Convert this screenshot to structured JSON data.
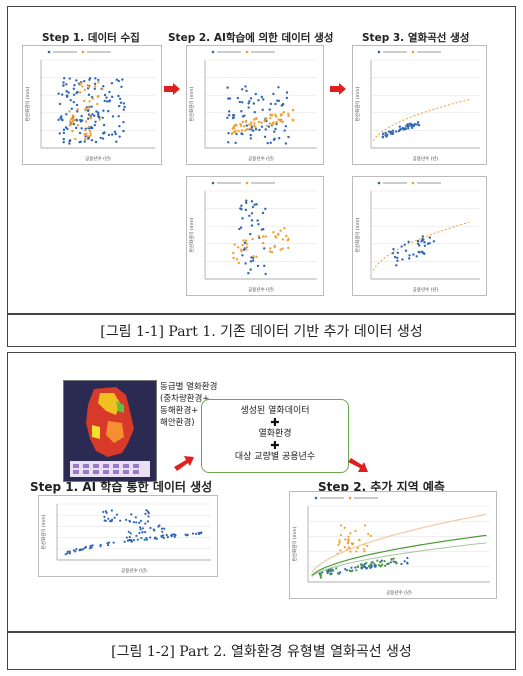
{
  "part1": {
    "step1": "Step 1. 데이터 수집",
    "step2": "Step 2. AI학습에 의한 데이터 생성",
    "step3": "Step 3. 열화곡선 생성",
    "caption": "[그림 1-1] Part 1. 기존 데이터 기반 추가 데이터 생성"
  },
  "part2": {
    "map_info": [
      "동급별 열화환경",
      "(중차량환경+",
      "동해환경+",
      "해안환경)"
    ],
    "box_lines": [
      "생성된 열화데이터",
      "열화환경",
      "대상 교량별 공용년수"
    ],
    "step1": "Step 1. AI 학습 통한 데이터 생성",
    "step2": "Step 2. 추가 지역 예측",
    "caption": "[그림 1-2] Part 2. 열화환경 유형별 열화곡선 생성"
  },
  "axis": {
    "x_label": "공용년수 (년)",
    "y_label": "탄산화깊이 (mm)"
  },
  "colors": {
    "blue": "#2f66b3",
    "orange": "#f0a030",
    "green": "#4a9a3a",
    "arrow": "#e02020"
  }
}
